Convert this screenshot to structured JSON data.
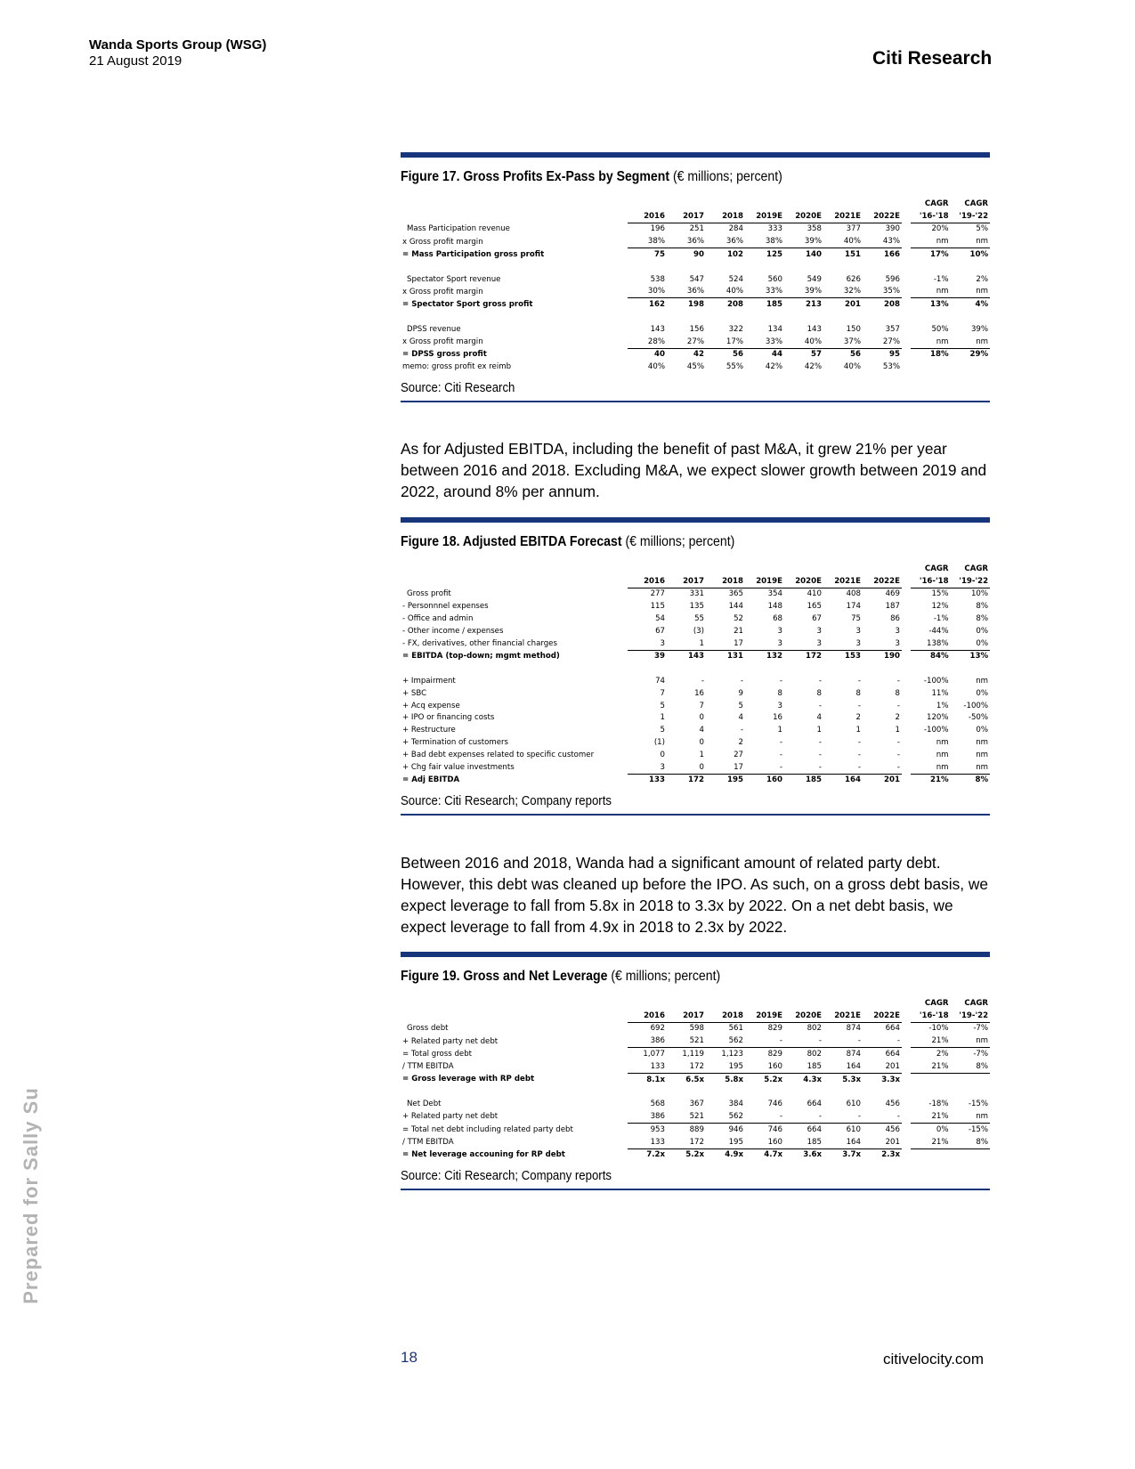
{
  "header": {
    "company": "Wanda Sports Group (WSG)",
    "date": "21 August 2019",
    "brand": "Citi Research"
  },
  "figures": [
    {
      "title_bold": "Figure 17. Gross Profits Ex-Pass by Segment",
      "title_rest": "(€ millions; percent)",
      "cagr_heads": [
        "CAGR",
        "CAGR"
      ],
      "columns": [
        "2016",
        "2017",
        "2018",
        "2019E",
        "2020E",
        "2021E",
        "2022E",
        "'16-'18",
        "'19-'22"
      ],
      "blocks": [
        [
          {
            "label": "Mass Participation revenue",
            "values": [
              "196",
              "251",
              "284",
              "333",
              "358",
              "377",
              "390",
              "20%",
              "5%"
            ]
          },
          {
            "label": "x Gross profit margin",
            "underlined": true,
            "values": [
              "38%",
              "36%",
              "36%",
              "38%",
              "39%",
              "40%",
              "43%",
              "nm",
              "nm"
            ]
          },
          {
            "label": "= Mass Participation gross profit",
            "bold": true,
            "values": [
              "75",
              "90",
              "102",
              "125",
              "140",
              "151",
              "166",
              "17%",
              "10%"
            ]
          }
        ],
        [
          {
            "label": "Spectator Sport revenue",
            "values": [
              "538",
              "547",
              "524",
              "560",
              "549",
              "626",
              "596",
              "-1%",
              "2%"
            ]
          },
          {
            "label": "x Gross profit margin",
            "underlined": true,
            "values": [
              "30%",
              "36%",
              "40%",
              "33%",
              "39%",
              "32%",
              "35%",
              "nm",
              "nm"
            ]
          },
          {
            "label": "= Spectator Sport gross profit",
            "bold": true,
            "values": [
              "162",
              "198",
              "208",
              "185",
              "213",
              "201",
              "208",
              "13%",
              "4%"
            ]
          }
        ],
        [
          {
            "label": "DPSS revenue",
            "values": [
              "143",
              "156",
              "322",
              "134",
              "143",
              "150",
              "357",
              "50%",
              "39%"
            ]
          },
          {
            "label": "x Gross profit margin",
            "underlined": true,
            "values": [
              "28%",
              "27%",
              "17%",
              "33%",
              "40%",
              "37%",
              "27%",
              "nm",
              "nm"
            ]
          },
          {
            "label": "= DPSS gross profit",
            "bold": true,
            "values": [
              "40",
              "42",
              "56",
              "44",
              "57",
              "56",
              "95",
              "18%",
              "29%"
            ]
          },
          {
            "label": "memo: gross profit ex reimb",
            "values": [
              "40%",
              "45%",
              "55%",
              "42%",
              "42%",
              "40%",
              "53%"
            ]
          }
        ]
      ],
      "source": "Source: Citi Research"
    },
    {
      "title_bold": "Figure 18. Adjusted EBITDA Forecast",
      "title_rest": "(€ millions; percent)",
      "cagr_heads": [
        "CAGR",
        "CAGR"
      ],
      "columns": [
        "2016",
        "2017",
        "2018",
        "2019E",
        "2020E",
        "2021E",
        "2022E",
        "'16-'18",
        "'19-'22"
      ],
      "blocks": [
        [
          {
            "label": "Gross profit",
            "values": [
              "277",
              "331",
              "365",
              "354",
              "410",
              "408",
              "469",
              "15%",
              "10%"
            ]
          },
          {
            "label": "- Personnnel expenses",
            "values": [
              "115",
              "135",
              "144",
              "148",
              "165",
              "174",
              "187",
              "12%",
              "8%"
            ]
          },
          {
            "label": "- Office and admin",
            "values": [
              "54",
              "55",
              "52",
              "68",
              "67",
              "75",
              "86",
              "-1%",
              "8%"
            ]
          },
          {
            "label": "- Other income / expenses",
            "values": [
              "67",
              "(3)",
              "21",
              "3",
              "3",
              "3",
              "3",
              "-44%",
              "0%"
            ]
          },
          {
            "label": "- FX, derivatives, other financial charges",
            "underlined": true,
            "values": [
              "3",
              "1",
              "17",
              "3",
              "3",
              "3",
              "3",
              "138%",
              "0%"
            ]
          },
          {
            "label": "= EBITDA (top-down; mgmt method)",
            "bold": true,
            "values": [
              "39",
              "143",
              "131",
              "132",
              "172",
              "153",
              "190",
              "84%",
              "13%"
            ]
          }
        ],
        [
          {
            "label": "+ Impairment",
            "values": [
              "74",
              "-",
              "-",
              "-",
              "-",
              "-",
              "-",
              "-100%",
              "nm"
            ]
          },
          {
            "label": "+ SBC",
            "values": [
              "7",
              "16",
              "9",
              "8",
              "8",
              "8",
              "8",
              "11%",
              "0%"
            ]
          },
          {
            "label": "+ Acq expense",
            "values": [
              "5",
              "7",
              "5",
              "3",
              "-",
              "-",
              "-",
              "1%",
              "-100%"
            ]
          },
          {
            "label": "+ IPO or financing costs",
            "values": [
              "1",
              "0",
              "4",
              "16",
              "4",
              "2",
              "2",
              "120%",
              "-50%"
            ]
          },
          {
            "label": "+ Restructure",
            "values": [
              "5",
              "4",
              "-",
              "1",
              "1",
              "1",
              "1",
              "-100%",
              "0%"
            ]
          },
          {
            "label": "+ Termination of customers",
            "values": [
              "(1)",
              "0",
              "2",
              "-",
              "-",
              "-",
              "-",
              "nm",
              "nm"
            ]
          },
          {
            "label": "+ Bad debt expenses related to specific customer",
            "values": [
              "0",
              "1",
              "27",
              "-",
              "-",
              "-",
              "-",
              "nm",
              "nm"
            ]
          },
          {
            "label": "+ Chg fair value investments",
            "underlined": true,
            "values": [
              "3",
              "0",
              "17",
              "-",
              "-",
              "-",
              "-",
              "nm",
              "nm"
            ]
          },
          {
            "label": "= Adj EBITDA",
            "bold": true,
            "values": [
              "133",
              "172",
              "195",
              "160",
              "185",
              "164",
              "201",
              "21%",
              "8%"
            ]
          }
        ]
      ],
      "source": "Source: Citi Research; Company reports"
    },
    {
      "title_bold": "Figure 19. Gross and Net Leverage",
      "title_rest": "(€ millions; percent)",
      "cagr_heads": [
        "CAGR",
        "CAGR"
      ],
      "columns": [
        "2016",
        "2017",
        "2018",
        "2019E",
        "2020E",
        "2021E",
        "2022E",
        "'16-'18",
        "'19-'22"
      ],
      "blocks": [
        [
          {
            "label": "Gross debt",
            "values": [
              "692",
              "598",
              "561",
              "829",
              "802",
              "874",
              "664",
              "-10%",
              "-7%"
            ]
          },
          {
            "label": "+ Related party net debt",
            "underlined": true,
            "values": [
              "386",
              "521",
              "562",
              "-",
              "-",
              "-",
              "-",
              "21%",
              "nm"
            ]
          },
          {
            "label": "= Total gross debt",
            "values": [
              "1,077",
              "1,119",
              "1,123",
              "829",
              "802",
              "874",
              "664",
              "2%",
              "-7%"
            ]
          },
          {
            "label": "/ TTM EBITDA",
            "underlined": true,
            "values": [
              "133",
              "172",
              "195",
              "160",
              "185",
              "164",
              "201",
              "21%",
              "8%"
            ]
          },
          {
            "label": "= Gross leverage with RP debt",
            "bold": true,
            "values": [
              "8.1x",
              "6.5x",
              "5.8x",
              "5.2x",
              "4.3x",
              "5.3x",
              "3.3x"
            ]
          }
        ],
        [
          {
            "label": "Net Debt",
            "values": [
              "568",
              "367",
              "384",
              "746",
              "664",
              "610",
              "456",
              "-18%",
              "-15%"
            ]
          },
          {
            "label": "+ Related party net debt",
            "underlined": true,
            "values": [
              "386",
              "521",
              "562",
              "-",
              "-",
              "-",
              "-",
              "21%",
              "nm"
            ]
          },
          {
            "label": "= Total net debt including related party debt",
            "values": [
              "953",
              "889",
              "946",
              "746",
              "664",
              "610",
              "456",
              "0%",
              "-15%"
            ]
          },
          {
            "label": "/ TTM EBITDA",
            "underlined": true,
            "values": [
              "133",
              "172",
              "195",
              "160",
              "185",
              "164",
              "201",
              "21%",
              "8%"
            ]
          },
          {
            "label": "= Net leverage accouning for RP debt",
            "bold": true,
            "values": [
              "7.2x",
              "5.2x",
              "4.9x",
              "4.7x",
              "3.6x",
              "3.7x",
              "2.3x"
            ]
          }
        ]
      ],
      "source": "Source: Citi Research; Company reports"
    }
  ],
  "paragraphs": [
    "As for Adjusted EBITDA, including the benefit of past M&A, it grew 21% per year between 2016 and 2018.  Excluding M&A, we expect slower growth between 2019 and 2022, around 8% per annum.",
    "Between 2016 and 2018, Wanda had a significant amount of related party debt. However, this debt was cleaned up before the IPO.  As such, on a gross debt basis, we expect leverage to fall from 5.8x in 2018 to 3.3x by 2022. On a net debt basis, we expect leverage to fall from 4.9x in 2018 to 2.3x by 2022."
  ],
  "footer": {
    "page": "18",
    "site": "citivelocity.com"
  },
  "watermark": "Prepared for Sally Su"
}
